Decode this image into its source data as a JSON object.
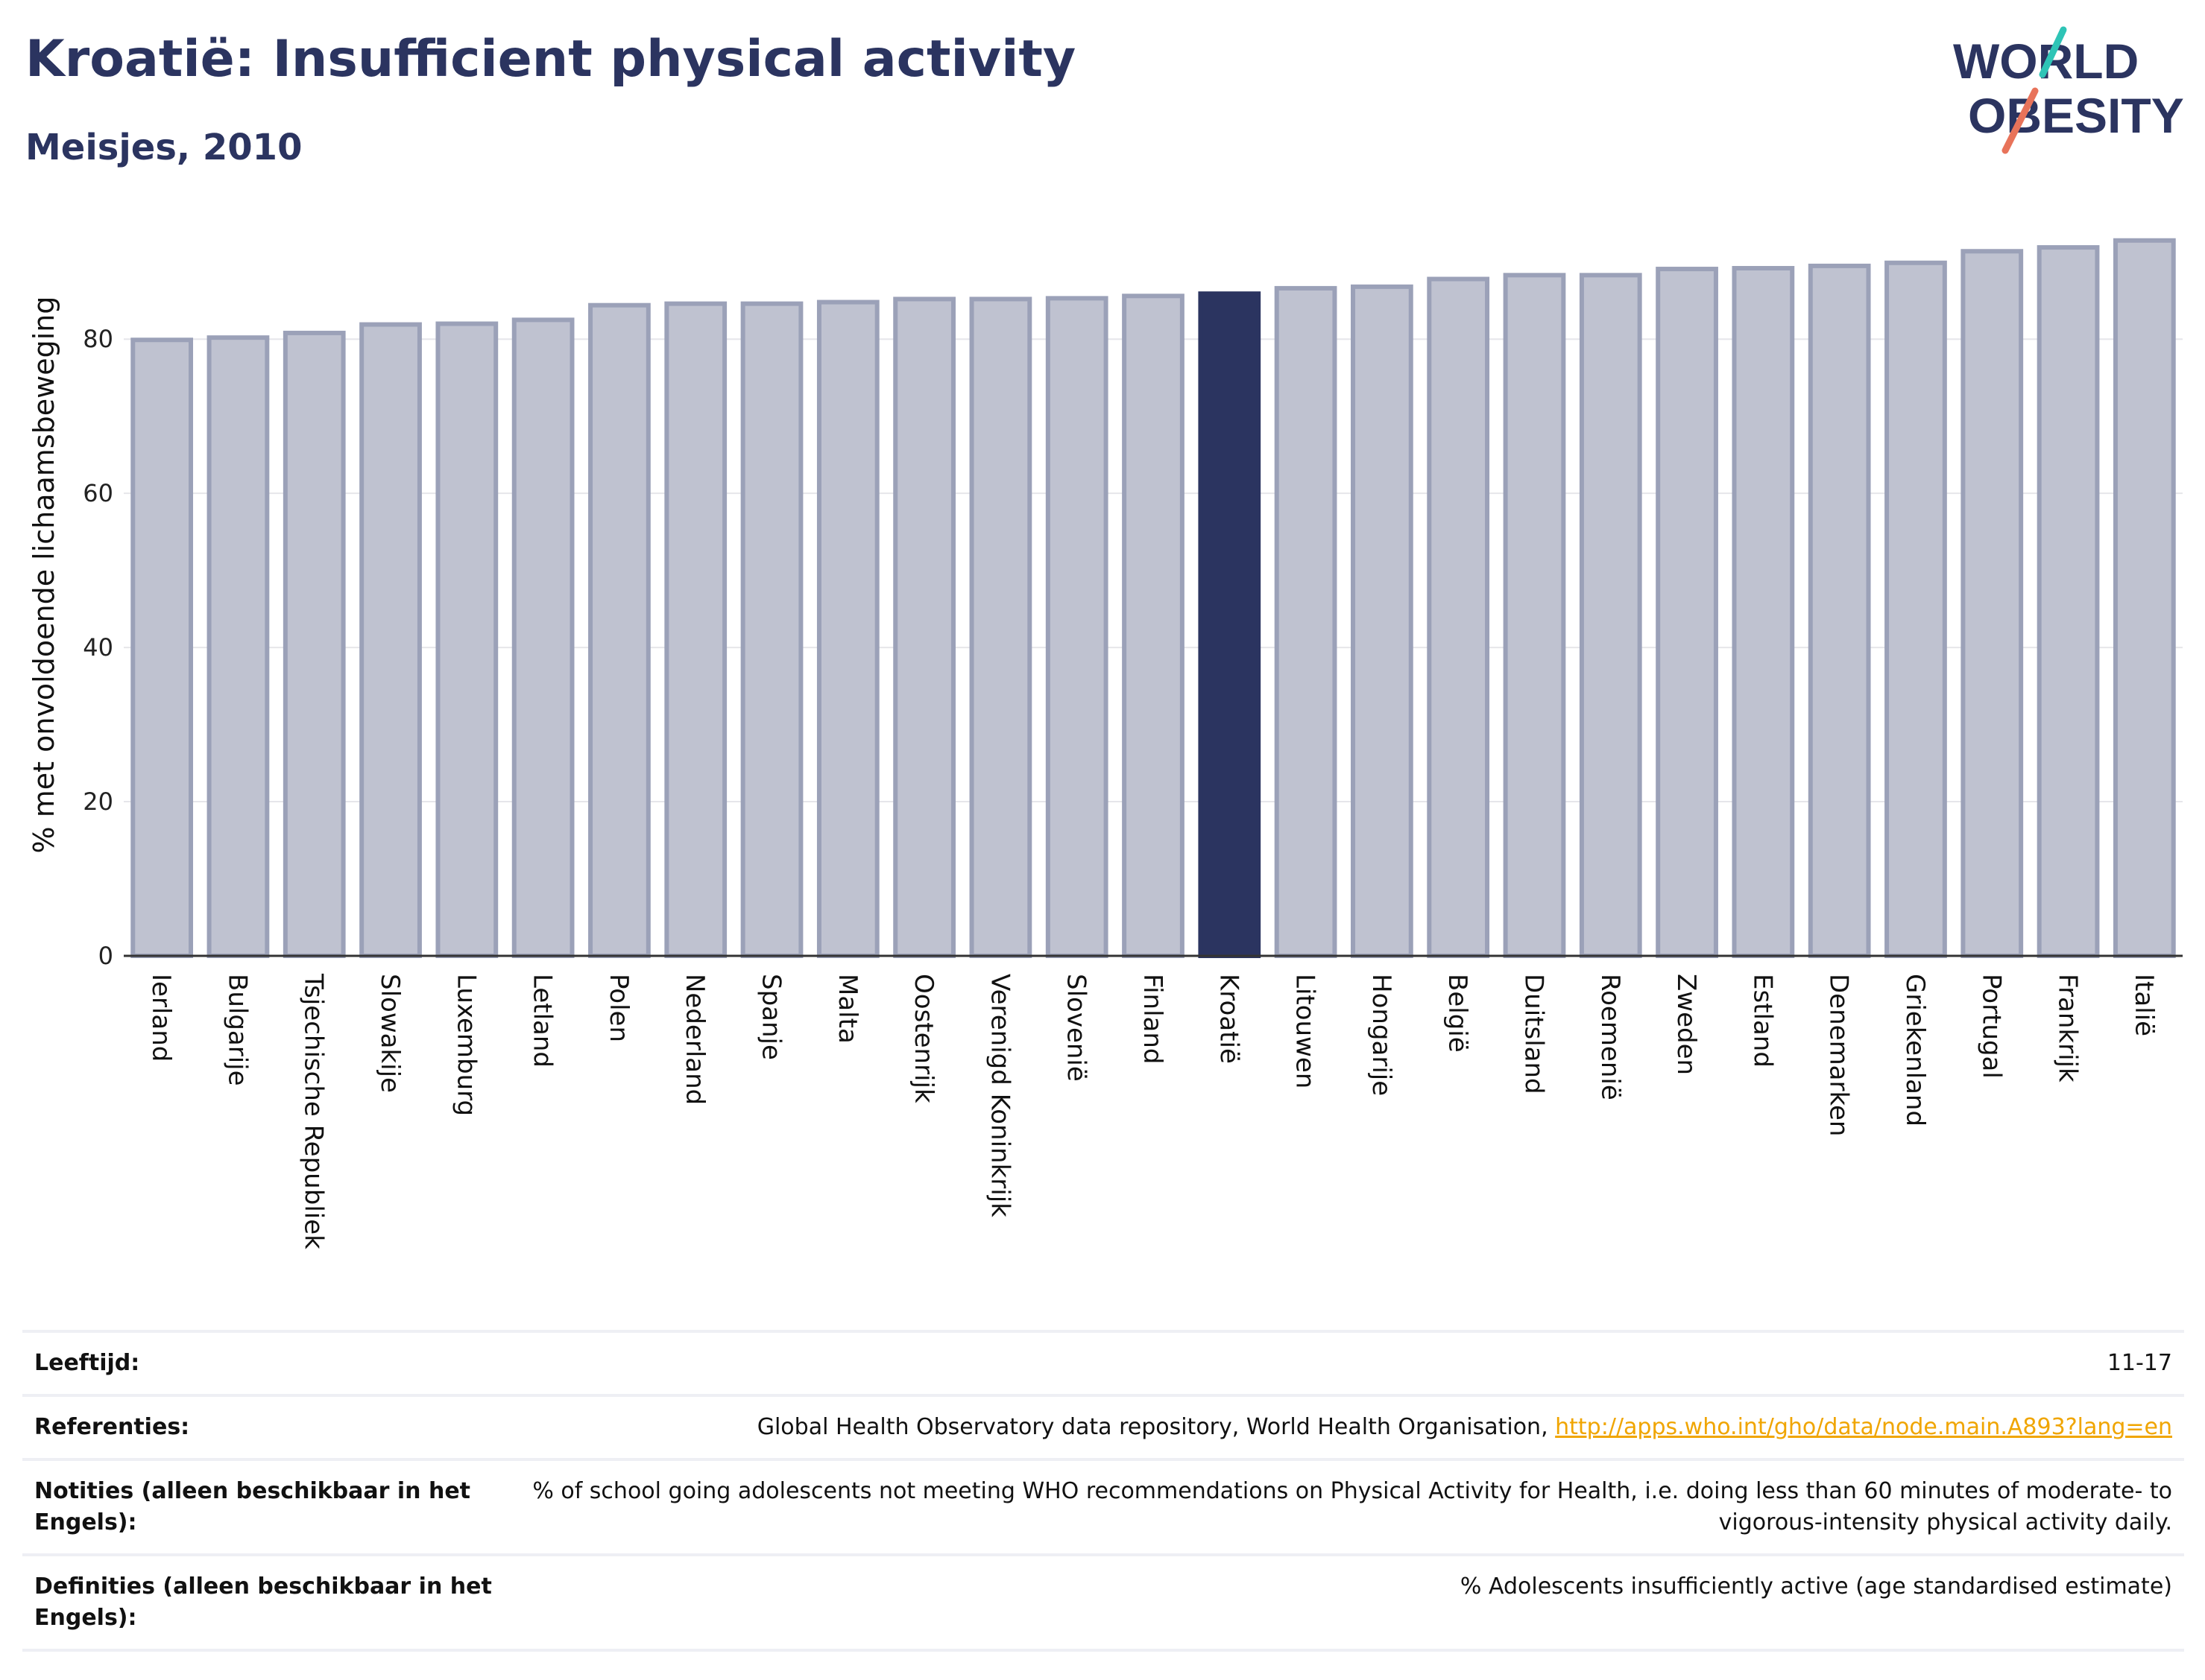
{
  "header": {
    "title": "Kroatië: Insufficient physical activity",
    "subtitle": "Meisjes, 2010"
  },
  "logo": {
    "line1": "WORLD",
    "line2": "OBESITY"
  },
  "chart_data": {
    "type": "bar",
    "ylabel": "% met onvoldoende lichaamsbeweging",
    "ylim": [
      0,
      95
    ],
    "yticks": [
      0,
      20,
      40,
      60,
      80
    ],
    "grid": true,
    "highlight": "Kroatië",
    "categories": [
      "Ierland",
      "Bulgarije",
      "Tsjechische Republiek",
      "Slowakije",
      "Luxemburg",
      "Letland",
      "Polen",
      "Nederland",
      "Spanje",
      "Malta",
      "Oostenrijk",
      "Verenigd Koninkrijk",
      "Slovenië",
      "Finland",
      "Kroatië",
      "Litouwen",
      "Hongarije",
      "België",
      "Duitsland",
      "Roemenië",
      "Zweden",
      "Estland",
      "Denemarken",
      "Griekenland",
      "Portugal",
      "Frankrijk",
      "Italië"
    ],
    "values": [
      79.9,
      80.2,
      80.8,
      81.9,
      82.0,
      82.5,
      84.4,
      84.6,
      84.6,
      84.8,
      85.2,
      85.2,
      85.3,
      85.6,
      85.9,
      86.6,
      86.8,
      87.8,
      88.3,
      88.3,
      89.1,
      89.2,
      89.5,
      89.9,
      91.4,
      91.9,
      92.8
    ],
    "colors": {
      "bar": "#bfc2d0",
      "bar_border": "#9ba1b8",
      "highlight": "#2b3460",
      "axis": "#333333",
      "grid": "#e6e6ea"
    }
  },
  "info": {
    "rows": [
      {
        "label": "Leeftijd:",
        "value": "11-17"
      },
      {
        "label": "Referenties:",
        "value": "Global Health Observatory data repository, World Health Organisation, ",
        "link": "http://apps.who.int/gho/data/node.main.A893?lang=en"
      },
      {
        "label": "Notities (alleen beschikbaar in het Engels):",
        "value": "% of school going adolescents not meeting WHO recommendations on Physical Activity for Health, i.e. doing less than 60 minutes of moderate- to vigorous-intensity physical activity daily."
      },
      {
        "label": "Definities (alleen beschikbaar in het Engels):",
        "value": "% Adolescents insufficiently active (age standardised estimate)"
      }
    ]
  }
}
